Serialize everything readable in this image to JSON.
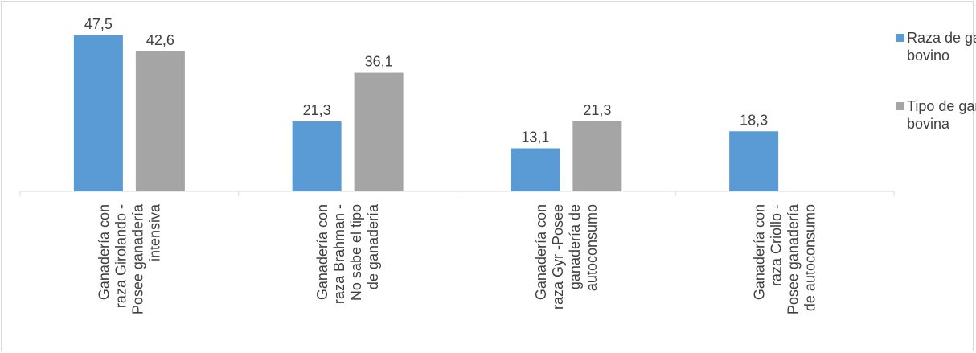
{
  "chart_data": {
    "type": "bar",
    "categories": [
      [
        "Ganadería con",
        "raza  Girolando -",
        "Posee ganadería",
        "intensiva"
      ],
      [
        "Ganadería con",
        "raza  Brahman -",
        "No sabe el tipo",
        "de ganadería"
      ],
      [
        "Ganadería con",
        "raza Gyr -Posee",
        "ganadería de",
        "autoconsumo"
      ],
      [
        "Ganadería con",
        "raza Criollo -",
        "Posee ganadería",
        "de autoconsumo"
      ]
    ],
    "series": [
      {
        "name": "Raza de ganado bovino",
        "legend_lines": [
          "Raza de ganado",
          "bovino"
        ],
        "color": "#5b9bd5",
        "values": [
          47.5,
          21.3,
          13.1,
          18.3
        ],
        "labels": [
          "47,5",
          "21,3",
          "13,1",
          "18,3"
        ]
      },
      {
        "name": "Tipo de ganaderia bovina",
        "legend_lines": [
          "Tipo de ganaderia",
          "bovina"
        ],
        "color": "#a5a5a5",
        "values": [
          42.6,
          36.1,
          21.3,
          null
        ],
        "labels": [
          "42,6",
          "36,1",
          "21,3",
          ""
        ]
      }
    ],
    "title": "",
    "xlabel": "",
    "ylabel": "",
    "ylim": [
      0,
      50
    ],
    "grid": false,
    "legend_position": "right"
  }
}
